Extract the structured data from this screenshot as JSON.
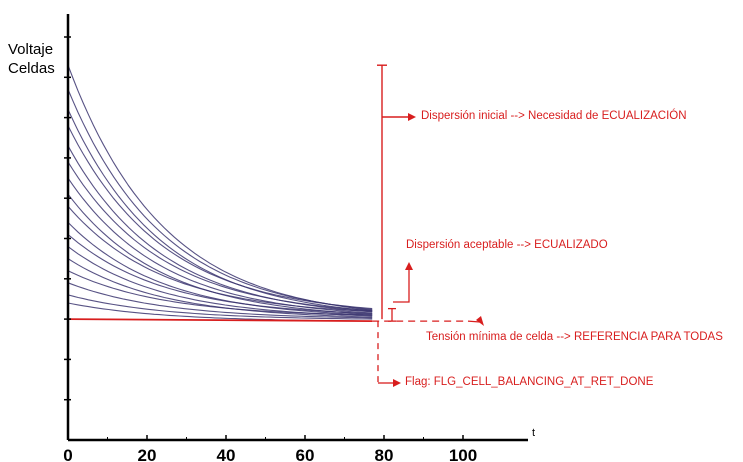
{
  "chart_data": {
    "type": "line",
    "ylabel_line1": "Voltaje",
    "ylabel_line2": "Celdas",
    "xlabel": "t",
    "x_ticks": [
      "0",
      "20",
      "40",
      "60",
      "80",
      "100"
    ],
    "xlim": [
      0,
      110
    ],
    "ylim": [
      0,
      10
    ],
    "grid": false,
    "reference_level": 3.0,
    "end_time": 77,
    "series_start_values": [
      9.3,
      8.7,
      8.2,
      7.8,
      7.3,
      6.9,
      6.5,
      6.1,
      5.8,
      5.4,
      5.1,
      4.8,
      4.5,
      4.2,
      3.9,
      3.6,
      3.4
    ],
    "series_end_values": [
      3.22,
      3.24,
      3.2,
      3.26,
      3.18,
      3.21,
      3.15,
      3.12,
      3.19,
      3.1,
      3.14,
      3.08,
      3.05,
      3.1,
      3.03,
      3.0,
      2.95
    ],
    "min_cell_line": {
      "start": 3.0,
      "end": 2.95
    },
    "initial_dispersion": [
      3.0,
      9.3
    ],
    "accepted_dispersion": [
      2.95,
      3.26
    ],
    "annotations": [
      {
        "id": "initial",
        "text": "Dispersión inicial --> Necesidad de ECUALIZACIÓN"
      },
      {
        "id": "acceptable",
        "text": "Dispersión aceptable --> ECUALIZADO"
      },
      {
        "id": "min",
        "text": "Tensión mínima de celda --> REFERENCIA PARA TODAS"
      },
      {
        "id": "flag",
        "text": "Flag: FLG_CELL_BALANCING_AT_RET_DONE"
      }
    ],
    "colors": {
      "curves": "#3b3570",
      "annotation": "#d81e1e",
      "axis": "#000000"
    }
  }
}
